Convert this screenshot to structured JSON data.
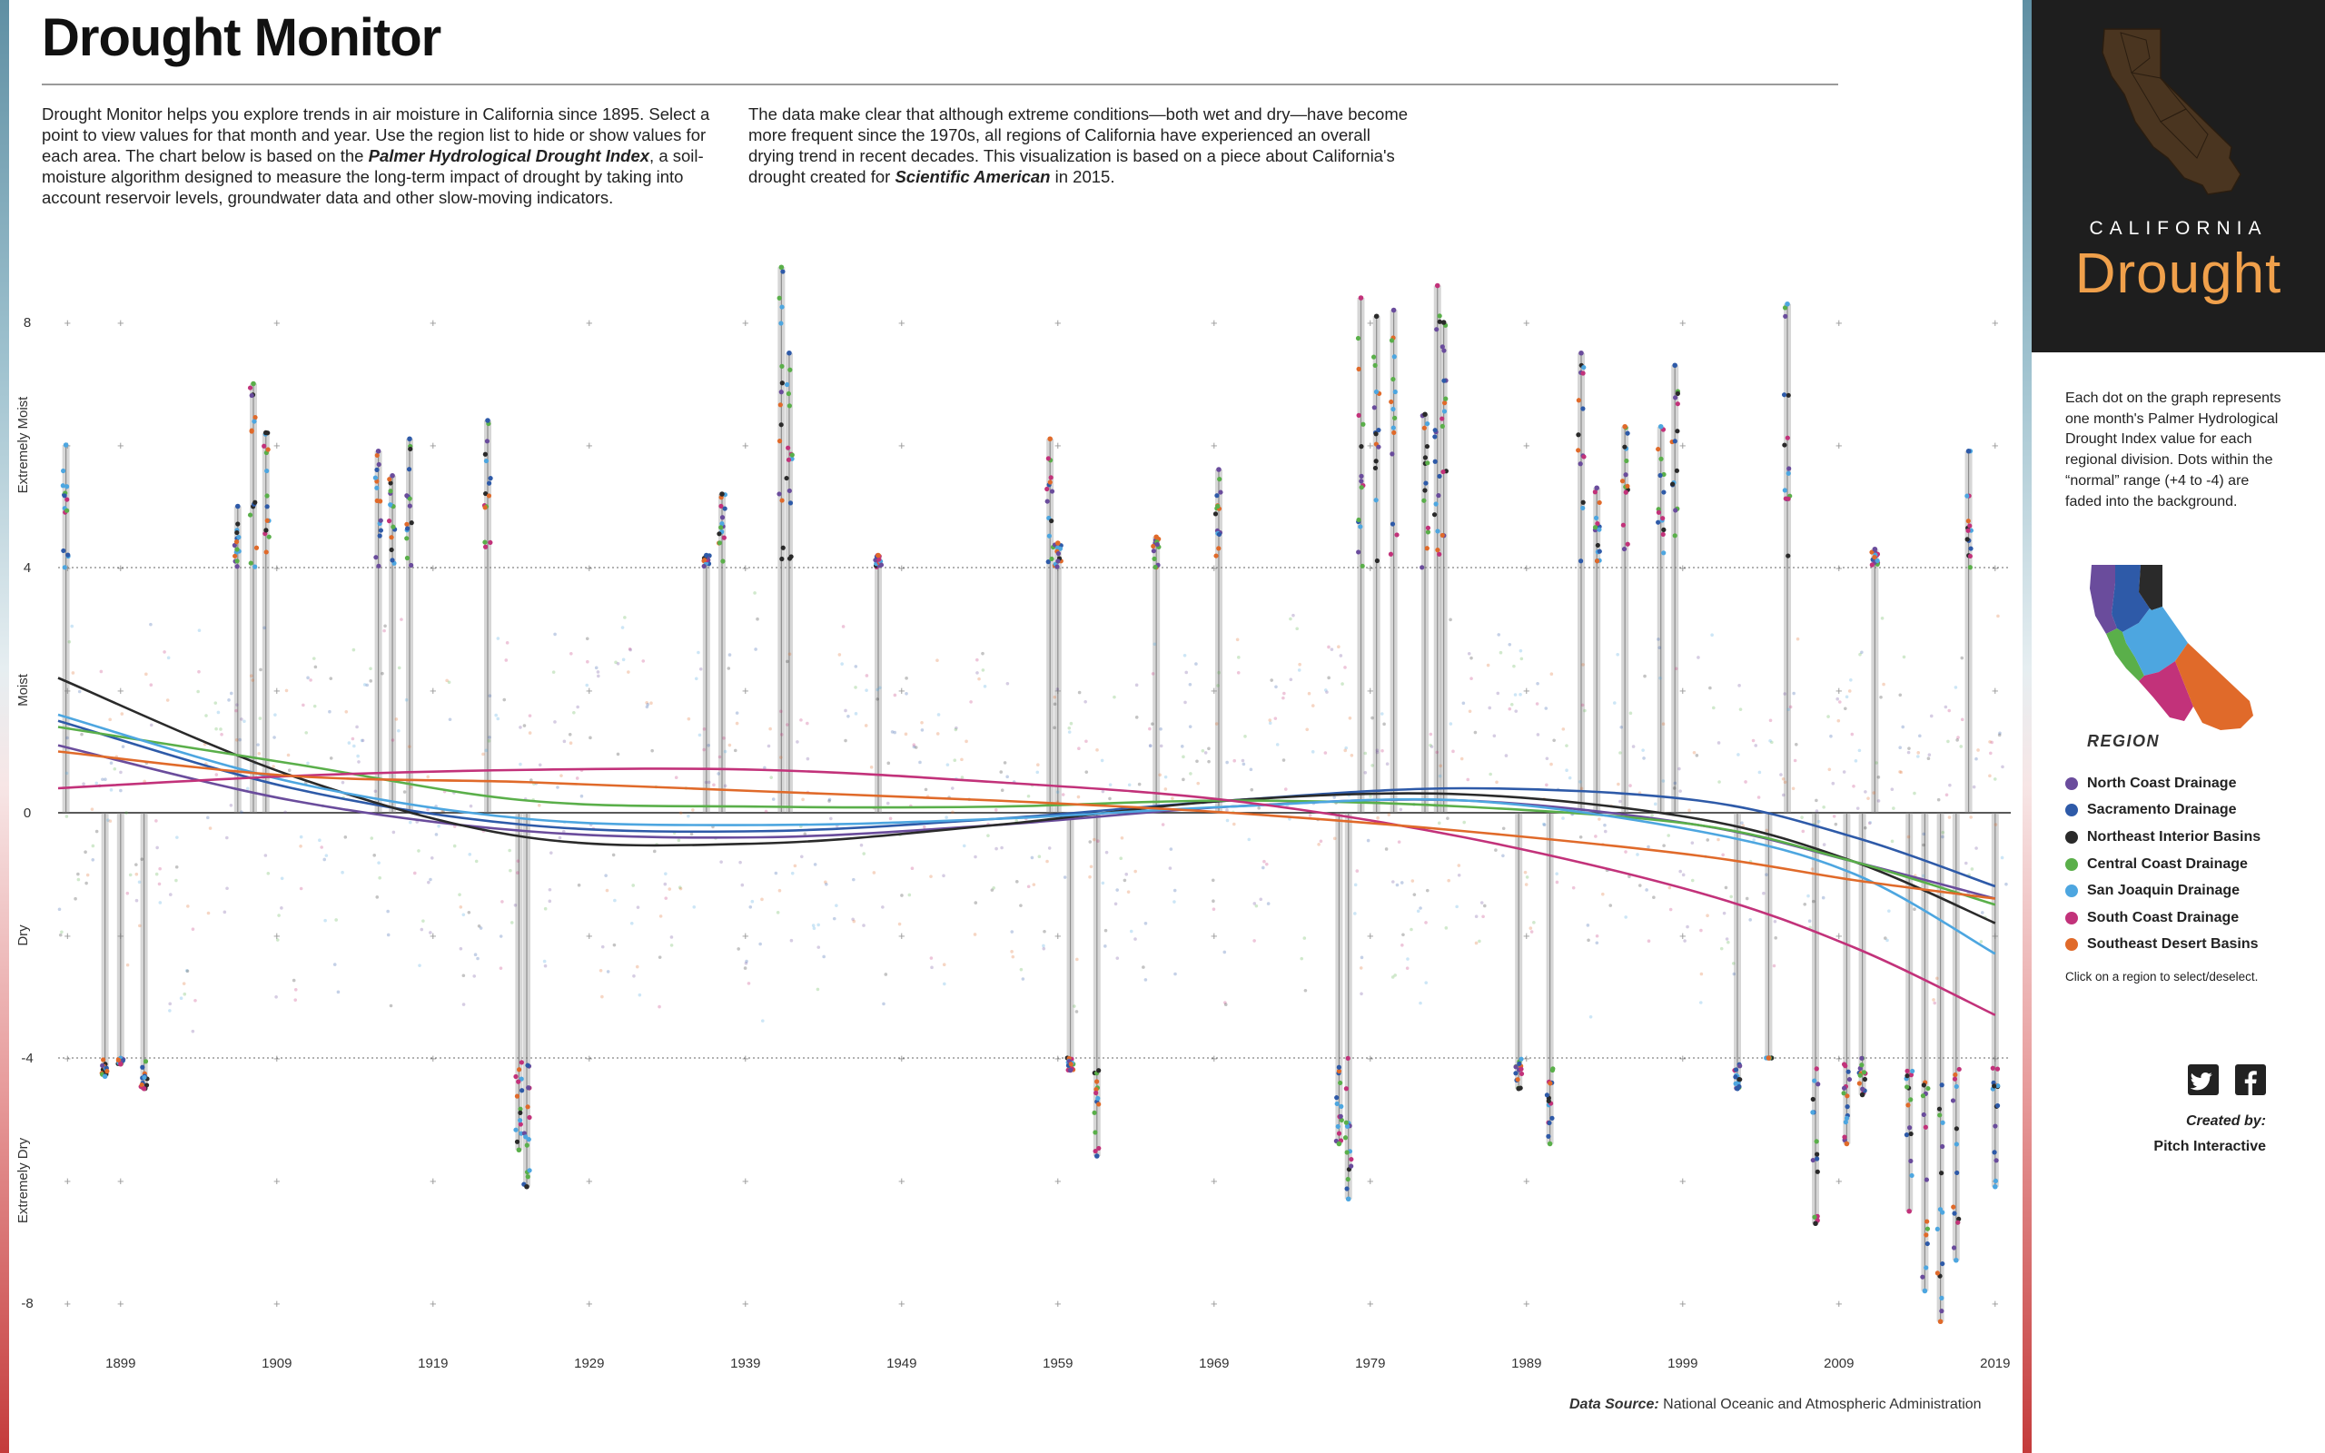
{
  "header": {
    "title": "Drought Monitor",
    "intro_left": {
      "part1": "Drought Monitor helps you explore trends in air moisture in California since 1895. Select a point to view values for that month and year. Use the region list to hide or show values for each area. The chart below is based on the ",
      "emphasis": "Palmer Hydrological Drought Index",
      "part2": ", a soil-moisture algorithm designed to measure the long-term impact of drought by taking into account reservoir levels, groundwater data and other slow-moving indicators."
    },
    "intro_right": {
      "part1": "The data make clear that although extreme conditions—both wet and dry—have become more frequent since the 1970s, all regions of California have experienced an overall drying trend in recent decades. This visualization is based on a piece about California's drought created for ",
      "emphasis": "Scientific American",
      "part2": " in 2015."
    }
  },
  "source": {
    "label": "Data Source:",
    "text": "National Oceanic and Atmospheric Administration"
  },
  "sidebar": {
    "brand_small": "CALIFORNIA",
    "brand_large": "Drought",
    "description": "Each dot on the graph represents one month's Palmer Hydrological Drought Index value for each regional division. Dots within the “normal” range (+4 to -4) are faded into the background.",
    "region_title": "REGION",
    "legend_hint": "Click on a region to select/deselect.",
    "created_by_label": "Created by:",
    "created_by_name": "Pitch Interactive",
    "icons": [
      "twitter-icon",
      "facebook-icon"
    ]
  },
  "chart_data": {
    "type": "scatter",
    "xlim": [
      1895,
      2020
    ],
    "ylim": [
      -8.5,
      8.5
    ],
    "x_ticks": [
      "1899",
      "1909",
      "1919",
      "1929",
      "1939",
      "1949",
      "1959",
      "1969",
      "1979",
      "1989",
      "1999",
      "2009",
      "2019"
    ],
    "y_ticks": [
      "8",
      "4",
      "0",
      "-4",
      "-8"
    ],
    "y_category_labels": [
      "Extremely Moist",
      "Moist",
      "Dry",
      "Extremely Dry"
    ],
    "normal_range": [
      -4,
      4
    ],
    "series": [
      {
        "name": "North Coast Drainage",
        "color": "#6a4c9c",
        "trend_x": [
          1895,
          1910,
          1925,
          1940,
          1955,
          1970,
          1985,
          2000,
          2010,
          2019
        ],
        "trend_y": [
          1.1,
          0.2,
          -0.3,
          -0.4,
          -0.2,
          0.1,
          0.2,
          -0.2,
          -0.8,
          -1.4
        ]
      },
      {
        "name": "Sacramento Drainage",
        "color": "#2e5aa8",
        "trend_x": [
          1895,
          1910,
          1925,
          1940,
          1955,
          1970,
          1985,
          2000,
          2010,
          2019
        ],
        "trend_y": [
          1.5,
          0.4,
          -0.2,
          -0.3,
          -0.1,
          0.2,
          0.4,
          0.2,
          -0.4,
          -1.2
        ]
      },
      {
        "name": "Northeast Interior Basins",
        "color": "#2a2a2a",
        "trend_x": [
          1895,
          1910,
          1925,
          1940,
          1955,
          1970,
          1985,
          2000,
          2010,
          2019
        ],
        "trend_y": [
          2.2,
          0.6,
          -0.4,
          -0.5,
          -0.2,
          0.2,
          0.3,
          -0.1,
          -0.8,
          -1.8
        ]
      },
      {
        "name": "Central Coast Drainage",
        "color": "#5aaf4a",
        "trend_x": [
          1895,
          1910,
          1925,
          1940,
          1955,
          1970,
          1985,
          2000,
          2010,
          2019
        ],
        "trend_y": [
          1.4,
          0.8,
          0.2,
          0.1,
          0.1,
          0.2,
          0.1,
          -0.2,
          -0.8,
          -1.5
        ]
      },
      {
        "name": "San Joaquin Drainage",
        "color": "#4da6e0",
        "trend_x": [
          1895,
          1910,
          1925,
          1940,
          1955,
          1970,
          1985,
          2000,
          2010,
          2019
        ],
        "trend_y": [
          1.6,
          0.5,
          -0.1,
          -0.2,
          -0.1,
          0.1,
          0.2,
          -0.3,
          -1.0,
          -2.3
        ]
      },
      {
        "name": "South Coast Drainage",
        "color": "#c2327a",
        "trend_x": [
          1895,
          1910,
          1925,
          1940,
          1955,
          1970,
          1985,
          2000,
          2010,
          2019
        ],
        "trend_y": [
          0.4,
          0.6,
          0.7,
          0.7,
          0.5,
          0.2,
          -0.4,
          -1.3,
          -2.2,
          -3.3
        ]
      },
      {
        "name": "Southeast Desert Basins",
        "color": "#e06a2a",
        "trend_x": [
          1895,
          1910,
          1925,
          1940,
          1955,
          1970,
          1985,
          2000,
          2010,
          2019
        ],
        "trend_y": [
          1.0,
          0.6,
          0.5,
          0.35,
          0.2,
          0.0,
          -0.3,
          -0.7,
          -1.1,
          -1.4
        ]
      }
    ],
    "extreme_events": [
      {
        "year": 1895.5,
        "value": 6.0
      },
      {
        "year": 1898.0,
        "value": -4.3
      },
      {
        "year": 1899.0,
        "value": -4.1
      },
      {
        "year": 1900.5,
        "value": -4.5
      },
      {
        "year": 1906.5,
        "value": 5.0
      },
      {
        "year": 1907.5,
        "value": 7.0
      },
      {
        "year": 1908.3,
        "value": 6.2
      },
      {
        "year": 1915.5,
        "value": 5.9
      },
      {
        "year": 1916.4,
        "value": 5.5
      },
      {
        "year": 1917.5,
        "value": 6.1
      },
      {
        "year": 1922.5,
        "value": 6.4
      },
      {
        "year": 1924.5,
        "value": -5.5
      },
      {
        "year": 1925.0,
        "value": -6.1
      },
      {
        "year": 1936.5,
        "value": 4.2
      },
      {
        "year": 1937.5,
        "value": 5.2
      },
      {
        "year": 1941.3,
        "value": 8.9
      },
      {
        "year": 1941.8,
        "value": 7.5
      },
      {
        "year": 1947.5,
        "value": 4.2
      },
      {
        "year": 1958.5,
        "value": 6.1
      },
      {
        "year": 1959.0,
        "value": 4.4
      },
      {
        "year": 1959.8,
        "value": -4.2
      },
      {
        "year": 1961.5,
        "value": -5.6
      },
      {
        "year": 1965.3,
        "value": 4.5
      },
      {
        "year": 1969.3,
        "value": 5.6
      },
      {
        "year": 1977.0,
        "value": -5.4
      },
      {
        "year": 1977.6,
        "value": -6.3
      },
      {
        "year": 1978.4,
        "value": 8.4
      },
      {
        "year": 1979.4,
        "value": 8.1
      },
      {
        "year": 1980.5,
        "value": 8.2
      },
      {
        "year": 1982.5,
        "value": 6.5
      },
      {
        "year": 1983.3,
        "value": 8.6
      },
      {
        "year": 1983.7,
        "value": 8.0
      },
      {
        "year": 1988.5,
        "value": -4.5
      },
      {
        "year": 1990.5,
        "value": -5.4
      },
      {
        "year": 1992.5,
        "value": 7.5
      },
      {
        "year": 1993.5,
        "value": 5.3
      },
      {
        "year": 1995.3,
        "value": 6.3
      },
      {
        "year": 1997.6,
        "value": 6.3
      },
      {
        "year": 1998.5,
        "value": 7.3
      },
      {
        "year": 2002.5,
        "value": -4.5
      },
      {
        "year": 2004.5,
        "value": -4.0
      },
      {
        "year": 2005.7,
        "value": 8.3
      },
      {
        "year": 2007.5,
        "value": -6.7
      },
      {
        "year": 2009.5,
        "value": -5.4
      },
      {
        "year": 2010.5,
        "value": -4.6
      },
      {
        "year": 2011.3,
        "value": 4.3
      },
      {
        "year": 2013.5,
        "value": -6.5
      },
      {
        "year": 2014.5,
        "value": -7.8
      },
      {
        "year": 2015.5,
        "value": -8.3
      },
      {
        "year": 2016.5,
        "value": -7.3
      },
      {
        "year": 2017.3,
        "value": 5.9
      },
      {
        "year": 2019.0,
        "value": -6.1
      }
    ]
  }
}
